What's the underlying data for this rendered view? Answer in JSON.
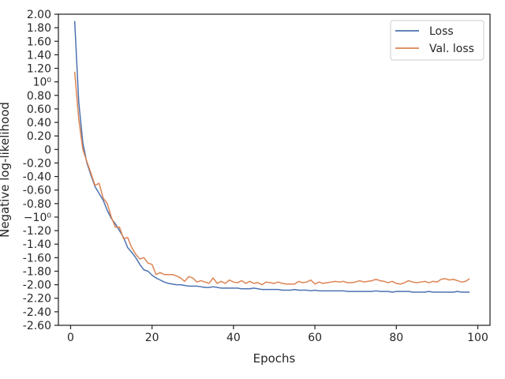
{
  "chart_data": {
    "type": "line",
    "xlabel": "Epochs",
    "ylabel": "Negative log-likelihood",
    "xlim": [
      -3,
      103
    ],
    "ylim": [
      -2.6,
      2.0
    ],
    "grid": false,
    "legend_position": "top-right",
    "xticks": [
      {
        "value": 0,
        "label": "0"
      },
      {
        "value": 20,
        "label": "20"
      },
      {
        "value": 40,
        "label": "40"
      },
      {
        "value": 60,
        "label": "60"
      },
      {
        "value": 80,
        "label": "80"
      },
      {
        "value": 100,
        "label": "100"
      }
    ],
    "yticks": [
      {
        "value": 2.0,
        "label": "2.00"
      },
      {
        "value": 1.8,
        "label": "1.80"
      },
      {
        "value": 1.6,
        "label": "1.60"
      },
      {
        "value": 1.4,
        "label": "1.40"
      },
      {
        "value": 1.2,
        "label": "1.20"
      },
      {
        "value": 1.0,
        "label": "10⁰"
      },
      {
        "value": 0.8,
        "label": "0.80"
      },
      {
        "value": 0.6,
        "label": "0.60"
      },
      {
        "value": 0.4,
        "label": "0.40"
      },
      {
        "value": 0.2,
        "label": "0.20"
      },
      {
        "value": 0.0,
        "label": "0"
      },
      {
        "value": -0.2,
        "label": "-0.20"
      },
      {
        "value": -0.4,
        "label": "-0.40"
      },
      {
        "value": -0.6,
        "label": "-0.60"
      },
      {
        "value": -0.8,
        "label": "-0.80"
      },
      {
        "value": -1.0,
        "label": "−10⁰"
      },
      {
        "value": -1.2,
        "label": "-1.20"
      },
      {
        "value": -1.4,
        "label": "-1.40"
      },
      {
        "value": -1.6,
        "label": "-1.60"
      },
      {
        "value": -1.8,
        "label": "-1.80"
      },
      {
        "value": -2.0,
        "label": "-2.00"
      },
      {
        "value": -2.2,
        "label": "-2.20"
      },
      {
        "value": -2.4,
        "label": "-2.40"
      },
      {
        "value": -2.6,
        "label": "-2.60"
      }
    ],
    "series": [
      {
        "name": "Loss",
        "color": "#4c72b0",
        "x": [
          1,
          2,
          3,
          4,
          5,
          6,
          7,
          8,
          9,
          10,
          11,
          12,
          13,
          14,
          15,
          16,
          17,
          18,
          19,
          20,
          21,
          22,
          23,
          24,
          25,
          26,
          27,
          28,
          29,
          30,
          31,
          32,
          33,
          34,
          35,
          36,
          37,
          38,
          39,
          40,
          41,
          42,
          43,
          44,
          45,
          46,
          47,
          48,
          49,
          50,
          51,
          52,
          53,
          54,
          55,
          56,
          57,
          58,
          59,
          60,
          61,
          62,
          63,
          64,
          65,
          66,
          67,
          68,
          69,
          70,
          71,
          72,
          73,
          74,
          75,
          76,
          77,
          78,
          79,
          80,
          81,
          82,
          83,
          84,
          85,
          86,
          87,
          88,
          89,
          90,
          91,
          92,
          93,
          94,
          95,
          96,
          97,
          98
        ],
        "y": [
          1.9,
          0.7,
          0.1,
          -0.2,
          -0.38,
          -0.55,
          -0.65,
          -0.75,
          -0.9,
          -1.02,
          -1.1,
          -1.2,
          -1.3,
          -1.45,
          -1.52,
          -1.6,
          -1.7,
          -1.78,
          -1.8,
          -1.86,
          -1.9,
          -1.93,
          -1.96,
          -1.98,
          -1.99,
          -2.0,
          -2.0,
          -2.01,
          -2.02,
          -2.02,
          -2.02,
          -2.03,
          -2.04,
          -2.04,
          -2.03,
          -2.04,
          -2.05,
          -2.05,
          -2.05,
          -2.05,
          -2.05,
          -2.06,
          -2.06,
          -2.06,
          -2.05,
          -2.06,
          -2.07,
          -2.07,
          -2.07,
          -2.07,
          -2.07,
          -2.08,
          -2.08,
          -2.08,
          -2.07,
          -2.08,
          -2.08,
          -2.08,
          -2.09,
          -2.08,
          -2.09,
          -2.09,
          -2.09,
          -2.09,
          -2.09,
          -2.09,
          -2.09,
          -2.1,
          -2.1,
          -2.1,
          -2.1,
          -2.1,
          -2.1,
          -2.1,
          -2.09,
          -2.1,
          -2.1,
          -2.1,
          -2.11,
          -2.1,
          -2.1,
          -2.1,
          -2.1,
          -2.11,
          -2.11,
          -2.11,
          -2.11,
          -2.1,
          -2.11,
          -2.11,
          -2.11,
          -2.11,
          -2.11,
          -2.11,
          -2.1,
          -2.11,
          -2.11,
          -2.11
        ]
      },
      {
        "name": "Val. loss",
        "color": "#dd8452",
        "x": [
          1,
          2,
          3,
          4,
          5,
          6,
          7,
          8,
          9,
          10,
          11,
          12,
          13,
          14,
          15,
          16,
          17,
          18,
          19,
          20,
          21,
          22,
          23,
          24,
          25,
          26,
          27,
          28,
          29,
          30,
          31,
          32,
          33,
          34,
          35,
          36,
          37,
          38,
          39,
          40,
          41,
          42,
          43,
          44,
          45,
          46,
          47,
          48,
          49,
          50,
          51,
          52,
          53,
          54,
          55,
          56,
          57,
          58,
          59,
          60,
          61,
          62,
          63,
          64,
          65,
          66,
          67,
          68,
          69,
          70,
          71,
          72,
          73,
          74,
          75,
          76,
          77,
          78,
          79,
          80,
          81,
          82,
          83,
          84,
          85,
          86,
          87,
          88,
          89,
          90,
          91,
          92,
          93,
          94,
          95,
          96,
          97,
          98
        ],
        "y": [
          1.15,
          0.45,
          0.0,
          -0.18,
          -0.35,
          -0.53,
          -0.5,
          -0.72,
          -0.8,
          -1.0,
          -1.15,
          -1.15,
          -1.32,
          -1.3,
          -1.45,
          -1.55,
          -1.62,
          -1.6,
          -1.68,
          -1.7,
          -1.85,
          -1.82,
          -1.85,
          -1.85,
          -1.85,
          -1.87,
          -1.9,
          -1.95,
          -1.88,
          -1.9,
          -1.96,
          -1.94,
          -1.96,
          -1.98,
          -1.9,
          -1.98,
          -1.95,
          -1.98,
          -1.93,
          -1.96,
          -1.97,
          -1.94,
          -1.98,
          -1.95,
          -1.98,
          -1.97,
          -2.0,
          -1.96,
          -1.97,
          -1.98,
          -1.96,
          -1.98,
          -1.99,
          -1.99,
          -1.99,
          -1.95,
          -1.97,
          -1.96,
          -1.93,
          -1.99,
          -1.96,
          -1.98,
          -1.97,
          -1.96,
          -1.95,
          -1.96,
          -1.95,
          -1.97,
          -1.97,
          -1.96,
          -1.94,
          -1.96,
          -1.95,
          -1.94,
          -1.92,
          -1.94,
          -1.95,
          -1.97,
          -1.95,
          -1.98,
          -1.99,
          -1.97,
          -1.94,
          -1.96,
          -1.97,
          -1.96,
          -1.95,
          -1.97,
          -1.95,
          -1.96,
          -1.92,
          -1.91,
          -1.93,
          -1.92,
          -1.94,
          -1.96,
          -1.95,
          -1.91
        ]
      }
    ]
  }
}
